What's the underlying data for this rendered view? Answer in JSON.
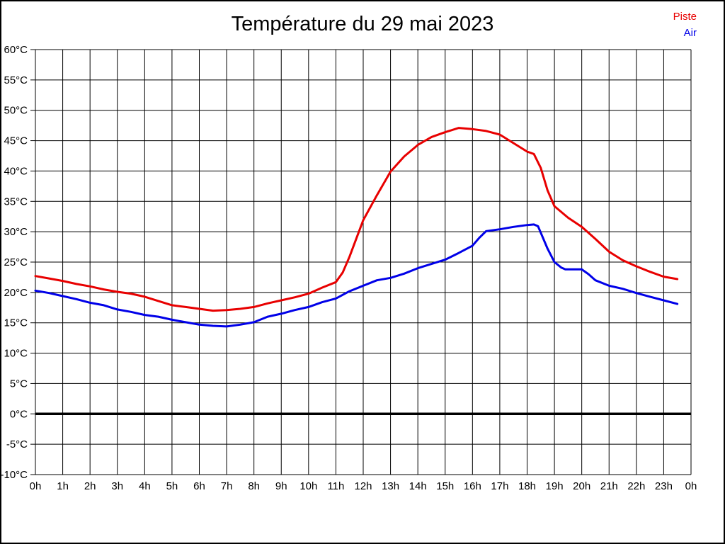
{
  "title": "Température du 29 mai 2023",
  "legend": [
    {
      "label": "Piste",
      "color": "#e80000"
    },
    {
      "label": "Air",
      "color": "#0000e8"
    }
  ],
  "chart_data": {
    "type": "line",
    "title": "Température du 29 mai 2023",
    "xlabel": "",
    "ylabel": "",
    "xlim": [
      0,
      24
    ],
    "ylim": [
      -10,
      60
    ],
    "y_tick_step": 5,
    "grid": true,
    "zero_line_bold": true,
    "legend_position": "top-right",
    "x_tick_labels": [
      "0h",
      "1h",
      "2h",
      "3h",
      "4h",
      "5h",
      "6h",
      "7h",
      "8h",
      "9h",
      "10h",
      "11h",
      "12h",
      "13h",
      "14h",
      "15h",
      "16h",
      "17h",
      "18h",
      "19h",
      "20h",
      "21h",
      "22h",
      "23h",
      "0h"
    ],
    "y_tick_labels": [
      "60°C",
      "55°C",
      "50°C",
      "45°C",
      "40°C",
      "35°C",
      "30°C",
      "25°C",
      "20°C",
      "15°C",
      "10°C",
      "5°C",
      "0°C",
      "-5°C",
      "-10°C"
    ],
    "series": [
      {
        "name": "Piste",
        "color": "#e80000",
        "points": [
          [
            0,
            22.7
          ],
          [
            0.5,
            22.3
          ],
          [
            1,
            21.9
          ],
          [
            1.5,
            21.4
          ],
          [
            2,
            21.0
          ],
          [
            2.5,
            20.5
          ],
          [
            3,
            20.1
          ],
          [
            3.5,
            19.8
          ],
          [
            4,
            19.3
          ],
          [
            4.5,
            18.6
          ],
          [
            5,
            17.9
          ],
          [
            5.5,
            17.6
          ],
          [
            6,
            17.3
          ],
          [
            6.5,
            17.0
          ],
          [
            7,
            17.1
          ],
          [
            7.5,
            17.3
          ],
          [
            8,
            17.6
          ],
          [
            8.5,
            18.2
          ],
          [
            9,
            18.7
          ],
          [
            9.5,
            19.2
          ],
          [
            10,
            19.8
          ],
          [
            10.5,
            20.8
          ],
          [
            11,
            21.7
          ],
          [
            11.25,
            23.3
          ],
          [
            11.5,
            25.9
          ],
          [
            12,
            31.9
          ],
          [
            12.5,
            36.0
          ],
          [
            13,
            39.9
          ],
          [
            13.5,
            42.4
          ],
          [
            14,
            44.3
          ],
          [
            14.5,
            45.6
          ],
          [
            15,
            46.4
          ],
          [
            15.5,
            47.1
          ],
          [
            16,
            46.9
          ],
          [
            16.5,
            46.6
          ],
          [
            17,
            46.0
          ],
          [
            17.5,
            44.6
          ],
          [
            18,
            43.2
          ],
          [
            18.25,
            42.8
          ],
          [
            18.5,
            40.5
          ],
          [
            18.75,
            36.8
          ],
          [
            19,
            34.2
          ],
          [
            19.5,
            32.3
          ],
          [
            20,
            30.8
          ],
          [
            20.5,
            28.8
          ],
          [
            21,
            26.7
          ],
          [
            21.5,
            25.3
          ],
          [
            22,
            24.3
          ],
          [
            22.5,
            23.4
          ],
          [
            23,
            22.6
          ],
          [
            23.5,
            22.2
          ]
        ]
      },
      {
        "name": "Air",
        "color": "#0000e8",
        "points": [
          [
            0,
            20.3
          ],
          [
            0.5,
            19.9
          ],
          [
            1,
            19.4
          ],
          [
            1.5,
            18.9
          ],
          [
            2,
            18.3
          ],
          [
            2.5,
            17.9
          ],
          [
            3,
            17.2
          ],
          [
            3.5,
            16.8
          ],
          [
            4,
            16.3
          ],
          [
            4.5,
            16.0
          ],
          [
            5,
            15.5
          ],
          [
            5.5,
            15.1
          ],
          [
            6,
            14.7
          ],
          [
            6.5,
            14.5
          ],
          [
            7,
            14.4
          ],
          [
            7.5,
            14.7
          ],
          [
            8,
            15.1
          ],
          [
            8.5,
            16.0
          ],
          [
            9,
            16.5
          ],
          [
            9.5,
            17.1
          ],
          [
            10,
            17.6
          ],
          [
            10.5,
            18.4
          ],
          [
            11,
            19.0
          ],
          [
            11.5,
            20.2
          ],
          [
            12,
            21.1
          ],
          [
            12.5,
            22.0
          ],
          [
            13,
            22.4
          ],
          [
            13.5,
            23.1
          ],
          [
            14,
            24.0
          ],
          [
            14.5,
            24.7
          ],
          [
            15,
            25.4
          ],
          [
            15.5,
            26.5
          ],
          [
            16,
            27.7
          ],
          [
            16.25,
            29.0
          ],
          [
            16.5,
            30.1
          ],
          [
            17,
            30.4
          ],
          [
            17.5,
            30.8
          ],
          [
            18,
            31.1
          ],
          [
            18.25,
            31.2
          ],
          [
            18.4,
            30.9
          ],
          [
            18.75,
            27.2
          ],
          [
            19,
            25.0
          ],
          [
            19.25,
            24.1
          ],
          [
            19.4,
            23.8
          ],
          [
            20,
            23.8
          ],
          [
            20.25,
            23.0
          ],
          [
            20.5,
            22.0
          ],
          [
            21,
            21.1
          ],
          [
            21.5,
            20.6
          ],
          [
            22,
            19.9
          ],
          [
            22.5,
            19.3
          ],
          [
            23,
            18.7
          ],
          [
            23.5,
            18.1
          ]
        ]
      }
    ]
  }
}
